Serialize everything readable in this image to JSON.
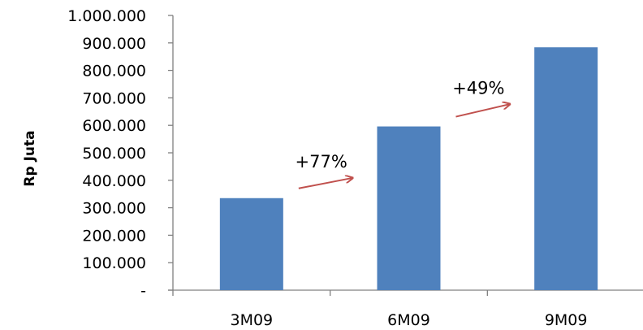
{
  "chart_data": {
    "type": "bar",
    "title": "",
    "xlabel": "",
    "ylabel": "Rp Juta",
    "categories": [
      "3M09",
      "6M09",
      "9M09"
    ],
    "values": [
      335000,
      596000,
      884000
    ],
    "ylim": [
      0,
      1000000
    ],
    "yticks": [
      0,
      100000,
      200000,
      300000,
      400000,
      500000,
      600000,
      700000,
      800000,
      900000,
      1000000
    ],
    "ytick_labels": [
      "-",
      "100.000",
      "200.000",
      "300.000",
      "400.000",
      "500.000",
      "600.000",
      "700.000",
      "800.000",
      "900.000",
      "1.000.000"
    ],
    "grid": false,
    "legend": "none",
    "annotations": [
      {
        "text": "+77%",
        "from_category": "3M09",
        "to_category": "6M09"
      },
      {
        "text": "+49%",
        "from_category": "6M09",
        "to_category": "9M09"
      }
    ],
    "colors": {
      "bar": "#4F81BD",
      "arrow": "#C0504D",
      "axis": "#808080"
    }
  }
}
